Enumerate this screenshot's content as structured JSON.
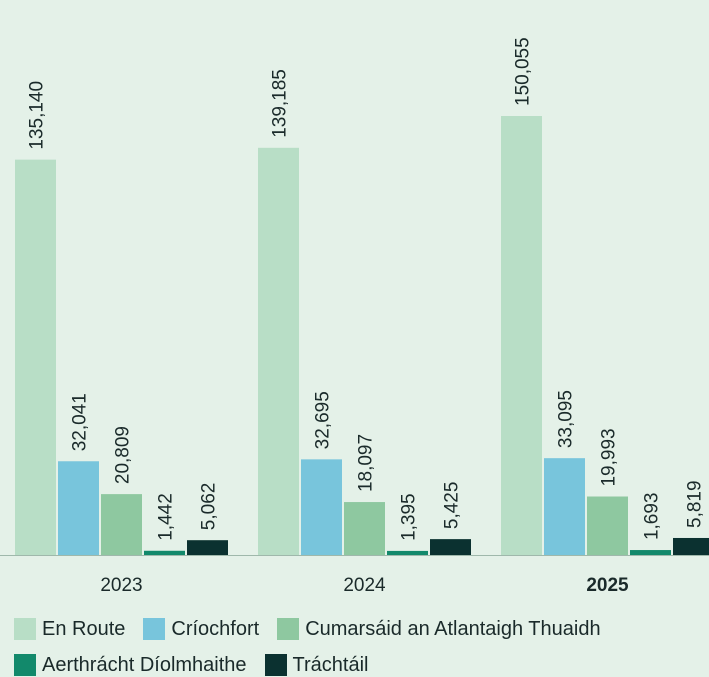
{
  "chart_data": {
    "type": "bar",
    "categories": [
      "2023",
      "2024",
      "2025"
    ],
    "highlight": "2025",
    "series": [
      {
        "name": "En Route",
        "color": "#b8dec6",
        "values": [
          135140,
          139185,
          150055
        ],
        "value_labels": [
          "135,140",
          "139,185",
          "150,055"
        ]
      },
      {
        "name": "Críochfort",
        "color": "#78c5dc",
        "values": [
          32041,
          32695,
          33095
        ],
        "value_labels": [
          "32,041",
          "32,695",
          "33,095"
        ]
      },
      {
        "name": "Cumarsáid an Atlantaigh Thuaidh",
        "color": "#8ec8a0",
        "values": [
          20809,
          18097,
          19993
        ],
        "value_labels": [
          "20,809",
          "18,097",
          "19,993"
        ]
      },
      {
        "name": "Aerthrácht Díolmhaithe",
        "color": "#12896b",
        "values": [
          1442,
          1395,
          1693
        ],
        "value_labels": [
          "1,442",
          "1,395",
          "1,693"
        ]
      },
      {
        "name": "Tráchtáil",
        "color": "#0b3130",
        "values": [
          5062,
          5425,
          5819
        ],
        "value_labels": [
          "5,062",
          "5,425",
          "5,819"
        ]
      }
    ]
  }
}
